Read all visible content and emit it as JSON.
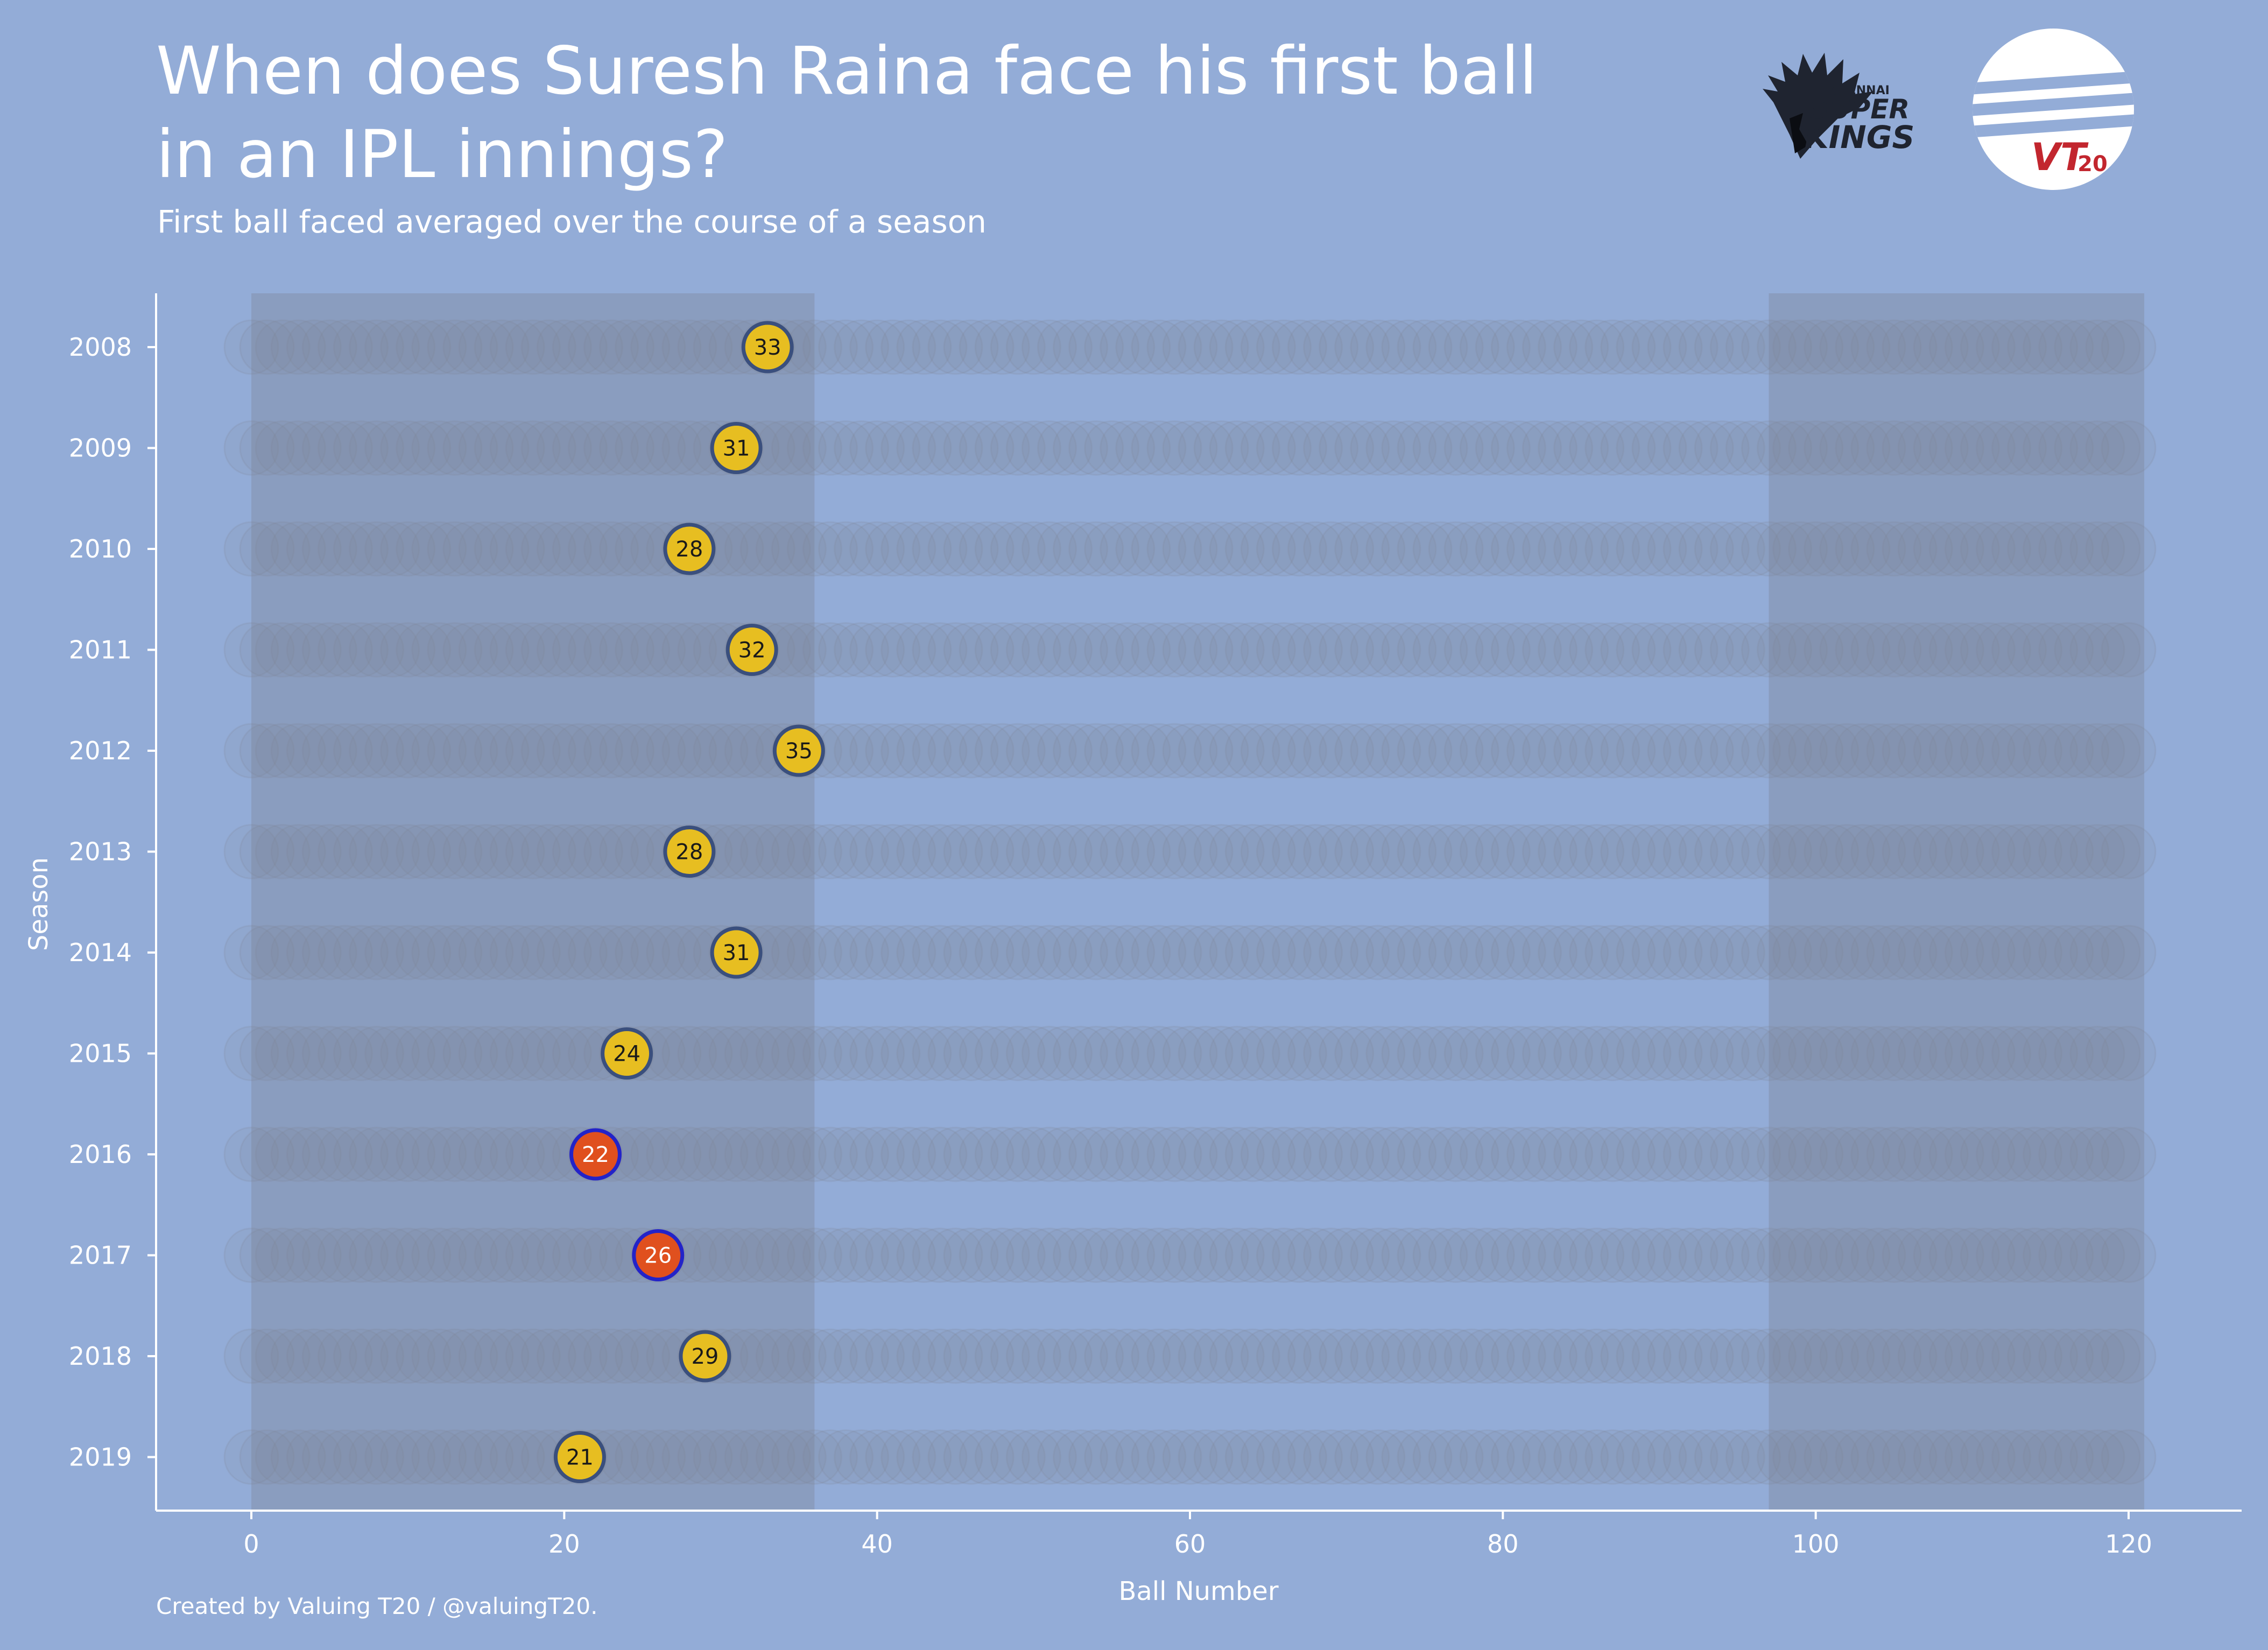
{
  "header": {
    "title": "When does Suresh Raina face his first ball in an IPL innings?",
    "subtitle": "First ball faced averaged over the course of a season"
  },
  "logos": {
    "csk": {
      "line1": "CHENNAI",
      "line2": "SUPER",
      "line3": "KINGS"
    },
    "vt": {
      "text": "VT",
      "sub": "20"
    }
  },
  "footer": {
    "credit": "Created by Valuing T20 / @valuingT20."
  },
  "colors": {
    "background": "#93acd7",
    "shaded_band": "#8a9dbf",
    "ghost_ball": "#7f8795",
    "highlight_default": "#e7be21",
    "highlight_outline": "#3a4f7d",
    "highlight_special": "#e0501e",
    "highlight_special_outline": "#2323c8",
    "axis": "#ffffff"
  },
  "chart_data": {
    "type": "scatter",
    "xlabel": "Ball Number",
    "ylabel": "Season",
    "xlim": [
      -6,
      126
    ],
    "xticks": [
      0,
      20,
      40,
      60,
      80,
      100,
      120
    ],
    "ghost_balls_x_range": [
      0,
      120
    ],
    "shaded_ranges": [
      [
        0,
        36
      ],
      [
        97,
        121
      ]
    ],
    "grid": false,
    "seasons": [
      "2008",
      "2009",
      "2010",
      "2011",
      "2012",
      "2013",
      "2014",
      "2015",
      "2016",
      "2017",
      "2018",
      "2019"
    ],
    "values": [
      33,
      31,
      28,
      32,
      35,
      28,
      31,
      24,
      22,
      26,
      29,
      21
    ],
    "highlight": [
      false,
      false,
      false,
      false,
      false,
      false,
      false,
      false,
      true,
      true,
      false,
      false
    ]
  }
}
